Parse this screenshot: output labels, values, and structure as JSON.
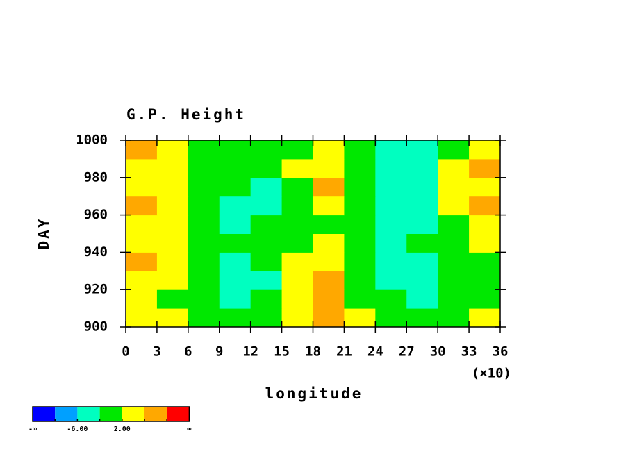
{
  "chart_data": {
    "type": "contour",
    "title": "G.P. Height",
    "x_label": "longitude",
    "x_unit_label": "(×10)",
    "y_label": "DAY",
    "xlim": [
      0,
      36
    ],
    "xticks": [
      0,
      3,
      6,
      9,
      12,
      15,
      18,
      21,
      24,
      27,
      30,
      33,
      36
    ],
    "ylim": [
      900,
      1000
    ],
    "yticks": [
      900,
      920,
      940,
      960,
      980,
      1000
    ],
    "x": [
      1.5,
      4.5,
      7.5,
      10.5,
      13.5,
      16.5,
      19.5,
      22.5,
      25.5,
      28.5,
      31.5,
      34.5
    ],
    "y": [
      905,
      915,
      925,
      935,
      945,
      955,
      965,
      975,
      985,
      995
    ],
    "z": [
      [
        5,
        2,
        1,
        -1,
        0,
        3,
        6,
        2,
        -1,
        -2,
        0,
        3
      ],
      [
        3,
        1,
        -2,
        -3,
        -1,
        2,
        8,
        1,
        -2,
        -3,
        -1,
        1
      ],
      [
        4,
        2,
        -1,
        -4,
        -3,
        3,
        7,
        0,
        -3,
        -4,
        -2,
        0
      ],
      [
        6,
        4,
        0,
        -3,
        -2,
        2,
        5,
        -1,
        -4,
        -3,
        -1,
        1
      ],
      [
        4,
        3,
        -1,
        -2,
        -1,
        1,
        3,
        -1,
        -3,
        -2,
        0,
        2
      ],
      [
        5,
        2,
        -2,
        -3,
        -2,
        -1,
        1,
        -2,
        -4,
        -4,
        1,
        4
      ],
      [
        7,
        4,
        -1,
        -4,
        -3,
        0,
        2,
        -1,
        -5,
        -3,
        4,
        7
      ],
      [
        4,
        3,
        0,
        -2,
        -3,
        1,
        6,
        1,
        -3,
        -4,
        3,
        5
      ],
      [
        5,
        4,
        1,
        -1,
        -1,
        2,
        4,
        0,
        -3,
        -3,
        2,
        6
      ],
      [
        6,
        3,
        0,
        -2,
        -2,
        1,
        3,
        -1,
        -4,
        -3,
        0,
        4
      ]
    ],
    "colorbar": {
      "colors": [
        "#0000ff",
        "#00a0ff",
        "#00ffc0",
        "#00e800",
        "#ffff00",
        "#ffa800",
        "#ff0000"
      ],
      "levels": [
        -10,
        -6,
        -2,
        2,
        6,
        10
      ],
      "ticks": [
        {
          "value": -6,
          "label": "-6.00"
        },
        {
          "value": 2,
          "label": "2.00"
        }
      ],
      "low_label": "-∞",
      "high_label": "∞"
    }
  }
}
